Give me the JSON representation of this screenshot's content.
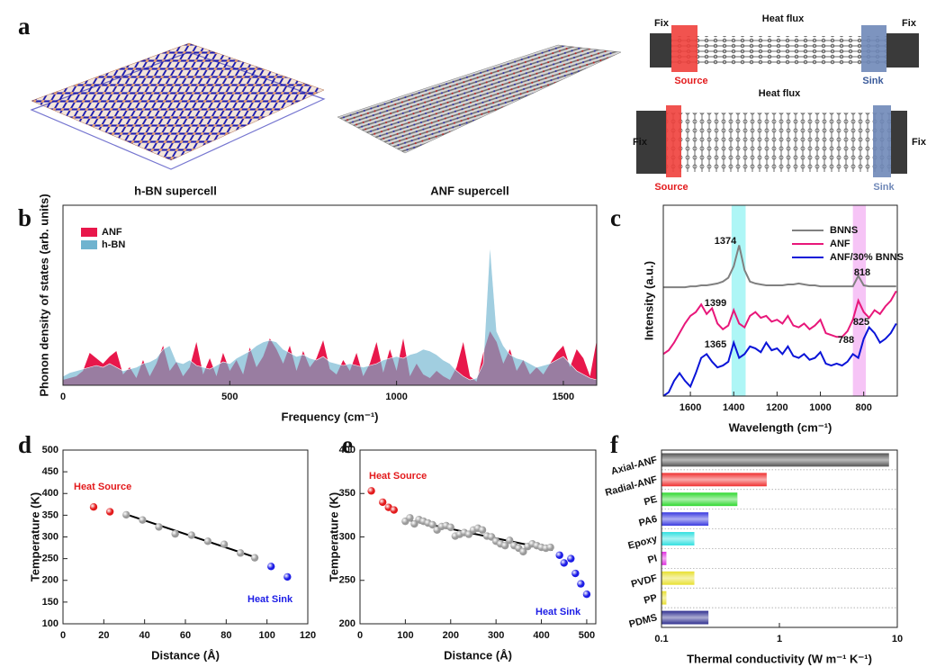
{
  "panel_a": {
    "label": "a",
    "structures": [
      "h-BN supercell",
      "ANF supercell"
    ],
    "models": [
      {
        "fix_left": "Fix",
        "fix_right": "Fix",
        "heat_flux": "Heat flux",
        "source": "Source",
        "sink": "Sink"
      },
      {
        "fix_left": "Fix",
        "fix_right": "Fix",
        "heat_flux": "Heat flux",
        "source": "Source",
        "sink": "Sink"
      }
    ]
  },
  "chart_data": [
    {
      "label": "b",
      "type": "area",
      "xlabel": "Frequency (cm⁻¹)",
      "ylabel": "Phonon density of states (arb. units)",
      "x": [
        0,
        20,
        40,
        60,
        80,
        100,
        120,
        140,
        160,
        180,
        200,
        220,
        240,
        260,
        280,
        300,
        320,
        340,
        360,
        380,
        400,
        420,
        440,
        460,
        480,
        500,
        520,
        540,
        560,
        580,
        600,
        620,
        640,
        660,
        680,
        700,
        720,
        740,
        760,
        780,
        800,
        820,
        840,
        860,
        880,
        900,
        920,
        940,
        960,
        980,
        1000,
        1020,
        1040,
        1060,
        1080,
        1100,
        1120,
        1140,
        1160,
        1180,
        1200,
        1220,
        1240,
        1260,
        1280,
        1300,
        1320,
        1340,
        1360,
        1380,
        1400,
        1420,
        1440,
        1460,
        1480,
        1500,
        1520,
        1540,
        1560,
        1580,
        1600
      ],
      "series": [
        {
          "name": "ANF",
          "color": "#e8174b",
          "values": [
            0.03,
            0.04,
            0.05,
            0.08,
            0.18,
            0.15,
            0.12,
            0.16,
            0.19,
            0.06,
            0.1,
            0.04,
            0.14,
            0.05,
            0.12,
            0.22,
            0.08,
            0.13,
            0.05,
            0.1,
            0.24,
            0.06,
            0.15,
            0.05,
            0.18,
            0.08,
            0.14,
            0.06,
            0.21,
            0.1,
            0.16,
            0.26,
            0.2,
            0.12,
            0.22,
            0.08,
            0.19,
            0.1,
            0.15,
            0.25,
            0.09,
            0.06,
            0.14,
            0.08,
            0.18,
            0.05,
            0.12,
            0.24,
            0.07,
            0.2,
            0.08,
            0.26,
            0.05,
            0.12,
            0.06,
            0.04,
            0.08,
            0.05,
            0.03,
            0.1,
            0.24,
            0.05,
            0.02,
            0.18,
            0.3,
            0.24,
            0.12,
            0.2,
            0.08,
            0.14,
            0.06,
            0.1,
            0.06,
            0.12,
            0.18,
            0.22,
            0.1,
            0.2,
            0.15,
            0.05,
            0.25
          ]
        },
        {
          "name": "h-BN",
          "color": "#6fb3cf",
          "values": [
            0.05,
            0.07,
            0.08,
            0.09,
            0.1,
            0.11,
            0.1,
            0.12,
            0.1,
            0.08,
            0.09,
            0.1,
            0.12,
            0.13,
            0.15,
            0.2,
            0.22,
            0.13,
            0.12,
            0.14,
            0.11,
            0.1,
            0.09,
            0.11,
            0.13,
            0.12,
            0.15,
            0.17,
            0.19,
            0.22,
            0.24,
            0.25,
            0.24,
            0.2,
            0.18,
            0.16,
            0.17,
            0.15,
            0.14,
            0.16,
            0.13,
            0.12,
            0.11,
            0.12,
            0.11,
            0.1,
            0.11,
            0.12,
            0.14,
            0.15,
            0.16,
            0.15,
            0.17,
            0.18,
            0.2,
            0.19,
            0.17,
            0.14,
            0.12,
            0.08,
            0.05,
            0.03,
            0.04,
            0.12,
            0.78,
            0.3,
            0.22,
            0.17,
            0.15,
            0.14,
            0.12,
            0.1,
            0.11,
            0.12,
            0.14,
            0.16,
            0.12,
            0.08,
            0.06,
            0.04,
            0.03
          ]
        }
      ],
      "xlim": [
        0,
        1600
      ],
      "ylim": [
        0,
        1
      ],
      "xticks": [
        0,
        500,
        1000,
        1500
      ],
      "legend": "upper left"
    },
    {
      "label": "c",
      "type": "line",
      "xlabel": "Wavelength (cm⁻¹)",
      "ylabel": "Intensity (a.u.)",
      "x": [
        1725,
        1700,
        1675,
        1650,
        1625,
        1600,
        1575,
        1550,
        1525,
        1500,
        1475,
        1450,
        1425,
        1400,
        1375,
        1350,
        1325,
        1300,
        1275,
        1250,
        1225,
        1200,
        1175,
        1150,
        1125,
        1100,
        1075,
        1050,
        1025,
        1000,
        975,
        950,
        925,
        900,
        875,
        850,
        825,
        800,
        775,
        750,
        725,
        700,
        675,
        650
      ],
      "series": [
        {
          "name": "BNNS",
          "color": "#808080",
          "values": [
            0.57,
            0.57,
            0.57,
            0.57,
            0.57,
            0.575,
            0.575,
            0.58,
            0.58,
            0.585,
            0.59,
            0.6,
            0.62,
            0.68,
            0.79,
            0.66,
            0.6,
            0.59,
            0.585,
            0.58,
            0.58,
            0.58,
            0.58,
            0.585,
            0.585,
            0.59,
            0.585,
            0.58,
            0.58,
            0.575,
            0.575,
            0.575,
            0.575,
            0.575,
            0.575,
            0.575,
            0.63,
            0.58,
            0.575,
            0.575,
            0.575,
            0.575,
            0.575,
            0.575
          ]
        },
        {
          "name": "ANF",
          "color": "#e8177a",
          "values": [
            0.22,
            0.24,
            0.28,
            0.33,
            0.38,
            0.42,
            0.44,
            0.48,
            0.43,
            0.46,
            0.38,
            0.35,
            0.37,
            0.45,
            0.38,
            0.36,
            0.42,
            0.44,
            0.41,
            0.42,
            0.39,
            0.4,
            0.38,
            0.42,
            0.37,
            0.36,
            0.38,
            0.35,
            0.37,
            0.4,
            0.33,
            0.32,
            0.31,
            0.31,
            0.34,
            0.4,
            0.5,
            0.44,
            0.41,
            0.45,
            0.43,
            0.47,
            0.5,
            0.55
          ]
        },
        {
          "name": "ANF/30% BNNS",
          "color": "#0a14d8",
          "values": [
            0.0,
            0.02,
            0.08,
            0.12,
            0.08,
            0.05,
            0.12,
            0.2,
            0.22,
            0.18,
            0.15,
            0.16,
            0.18,
            0.28,
            0.2,
            0.22,
            0.26,
            0.25,
            0.23,
            0.28,
            0.24,
            0.25,
            0.22,
            0.26,
            0.21,
            0.2,
            0.22,
            0.19,
            0.2,
            0.23,
            0.17,
            0.16,
            0.17,
            0.16,
            0.18,
            0.22,
            0.2,
            0.3,
            0.36,
            0.33,
            0.28,
            0.3,
            0.33,
            0.38
          ]
        }
      ],
      "highlights": [
        {
          "range": [
            1410,
            1345
          ],
          "color": "#aef6f6"
        },
        {
          "range": [
            850,
            790
          ],
          "color": "#f6c4f6"
        }
      ],
      "annotations": [
        "1374",
        "818",
        "1399",
        "825",
        "1365",
        "788"
      ],
      "xlim": [
        1725,
        645
      ],
      "ylim": [
        0,
        1
      ],
      "xticks": [
        1600,
        1400,
        1200,
        1000,
        800
      ],
      "legend": "upper right"
    },
    {
      "label": "d",
      "type": "scatter",
      "xlabel": "Distance (Å)",
      "ylabel": "Temperature (K)",
      "series": [
        {
          "name": "Heat Source",
          "color": "#e31a1c",
          "x": [
            15,
            23
          ],
          "values": [
            369,
            358
          ]
        },
        {
          "color": "#9a9a9a",
          "x": [
            31,
            39,
            47,
            55,
            63,
            71,
            79,
            87,
            94
          ],
          "values": [
            351,
            339,
            323,
            307,
            304,
            290,
            283,
            263,
            252
          ]
        },
        {
          "name": "Heat Sink",
          "color": "#1c1ce6",
          "x": [
            102,
            110
          ],
          "values": [
            232,
            208
          ]
        }
      ],
      "fit": {
        "x": [
          31,
          95
        ],
        "values": [
          352,
          252
        ]
      },
      "xlim": [
        0,
        120
      ],
      "ylim": [
        100,
        500
      ],
      "xticks": [
        0,
        20,
        40,
        60,
        80,
        100,
        120
      ],
      "yticks": [
        100,
        150,
        200,
        250,
        300,
        350,
        400,
        450,
        500
      ]
    },
    {
      "label": "e",
      "type": "scatter",
      "xlabel": "Distance (Å)",
      "ylabel": "Temperature (K)",
      "series": [
        {
          "name": "Heat Source",
          "color": "#e31a1c",
          "x": [
            25,
            50,
            63,
            75
          ],
          "values": [
            353,
            340,
            334,
            331
          ]
        },
        {
          "color": "#9a9a9a",
          "x": [
            100,
            110,
            120,
            130,
            140,
            150,
            160,
            170,
            180,
            190,
            200,
            210,
            220,
            230,
            240,
            250,
            260,
            270,
            280,
            290,
            300,
            310,
            320,
            330,
            340,
            350,
            360,
            370,
            380,
            390,
            400,
            410,
            420
          ],
          "values": [
            318,
            322,
            315,
            320,
            318,
            316,
            314,
            308,
            312,
            313,
            311,
            301,
            303,
            305,
            303,
            308,
            310,
            308,
            301,
            300,
            295,
            292,
            290,
            296,
            290,
            287,
            283,
            289,
            292,
            290,
            288,
            287,
            288
          ]
        },
        {
          "name": "Heat Sink",
          "color": "#1c1ce6",
          "x": [
            440,
            450,
            465,
            475,
            487,
            500
          ],
          "values": [
            279,
            270,
            275,
            258,
            246,
            234
          ]
        }
      ],
      "fit": {
        "x": [
          100,
          425
        ],
        "values": [
          320,
          285
        ]
      },
      "xlim": [
        0,
        520
      ],
      "ylim": [
        200,
        400
      ],
      "xticks": [
        0,
        100,
        200,
        300,
        400,
        500
      ],
      "yticks": [
        200,
        250,
        300,
        350,
        400
      ]
    },
    {
      "label": "f",
      "type": "barh",
      "xlabel": "Thermal conductivity (W m⁻¹ K⁻¹)",
      "xscale": "log",
      "categories": [
        "Axial-ANF",
        "Radial-ANF",
        "PE",
        "PA6",
        "Epoxy",
        "PI",
        "PVDF",
        "PP",
        "PDMS"
      ],
      "values": [
        8.5,
        0.78,
        0.44,
        0.25,
        0.19,
        0.11,
        0.19,
        0.11,
        0.25
      ],
      "colors": [
        "#555555",
        "#f03030",
        "#30d830",
        "#3a3ae0",
        "#30e0e0",
        "#e030e0",
        "#e8e030",
        "#e8e030",
        "#303090"
      ],
      "xlim": [
        0.1,
        10
      ],
      "xticks": [
        0.1,
        1,
        10
      ]
    }
  ]
}
